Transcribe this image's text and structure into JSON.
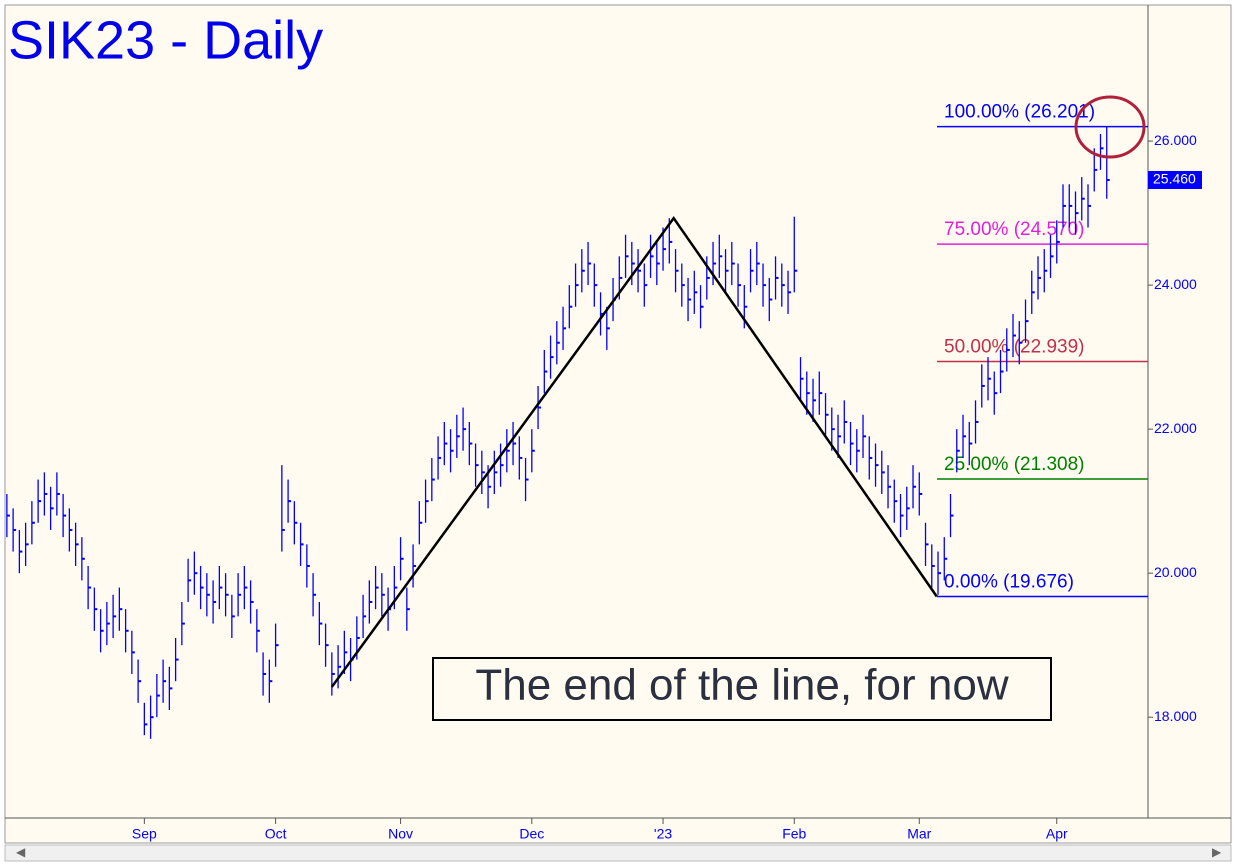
{
  "chart_data": {
    "type": "ohlc",
    "title": "SIK23 - Daily",
    "color": "#0000ff",
    "xlim": [
      -0.3,
      182.6
    ],
    "xticks": [
      {
        "value": 22,
        "label": "Sep"
      },
      {
        "value": 43,
        "label": "Oct"
      },
      {
        "value": 63,
        "label": "Nov"
      },
      {
        "value": 84,
        "label": "Dec"
      },
      {
        "value": 105,
        "label": "'23"
      },
      {
        "value": 126,
        "label": "Feb"
      },
      {
        "value": 146,
        "label": "Mar"
      },
      {
        "value": 168,
        "label": "Apr"
      }
    ],
    "ylim": [
      16.6,
      27.89
    ],
    "yticks": [
      {
        "value": 18,
        "label": "18.000"
      },
      {
        "value": 20,
        "label": "20.000"
      },
      {
        "value": 22,
        "label": "22.000"
      },
      {
        "value": 24,
        "label": "24.000"
      },
      {
        "value": 26,
        "label": "26.000"
      }
    ],
    "high": [
      21.1,
      20.9,
      20.6,
      20.7,
      21.0,
      21.3,
      21.4,
      21.2,
      21.4,
      21.1,
      20.9,
      20.7,
      20.5,
      20.1,
      19.8,
      19.5,
      19.6,
      19.7,
      19.8,
      19.5,
      19.2,
      18.8,
      18.2,
      18.3,
      18.6,
      18.8,
      18.7,
      19.1,
      19.6,
      20.2,
      20.3,
      20.1,
      20.0,
      19.9,
      20.1,
      20.0,
      19.7,
      20.0,
      20.1,
      19.9,
      19.5,
      18.9,
      18.8,
      19.3,
      21.5,
      21.3,
      21.0,
      20.7,
      20.4,
      20.0,
      19.6,
      19.3,
      18.9,
      19.0,
      19.2,
      19.1,
      19.4,
      19.7,
      19.9,
      20.1,
      20.0,
      19.8,
      20.1,
      20.5,
      19.8,
      20.4,
      21.0,
      21.3,
      21.6,
      21.9,
      22.1,
      22.0,
      22.2,
      22.3,
      22.1,
      21.8,
      21.7,
      21.5,
      21.7,
      21.8,
      22.0,
      22.1,
      21.9,
      21.6,
      22.0,
      22.6,
      23.1,
      23.3,
      23.5,
      23.7,
      24.0,
      24.3,
      24.5,
      24.6,
      24.3,
      23.9,
      23.7,
      24.1,
      24.4,
      24.7,
      24.6,
      24.5,
      24.3,
      24.7,
      24.6,
      24.8,
      24.93,
      24.5,
      24.3,
      24.1,
      24.2,
      24.0,
      24.4,
      24.6,
      24.7,
      24.5,
      24.6,
      24.3,
      24.0,
      24.5,
      24.6,
      24.3,
      24.1,
      24.4,
      24.3,
      24.2,
      24.95,
      23.0,
      22.8,
      22.7,
      22.8,
      22.5,
      22.3,
      22.2,
      22.4,
      22.1,
      22.0,
      22.2,
      21.9,
      21.8,
      21.7,
      21.5,
      21.3,
      21.1,
      21.2,
      21.5,
      21.4,
      20.7,
      20.4,
      20.3,
      20.5,
      21.1,
      22.0,
      22.2,
      22.1,
      22.4,
      22.9,
      23.0,
      22.8,
      23.1,
      23.4,
      23.6,
      23.5,
      23.8,
      24.2,
      24.4,
      24.5,
      24.7,
      24.9,
      25.4,
      25.4,
      25.3,
      25.5,
      25.4,
      25.9,
      26.1,
      26.2
    ],
    "low": [
      20.5,
      20.3,
      20.0,
      20.1,
      20.4,
      20.7,
      20.8,
      20.6,
      20.8,
      20.5,
      20.3,
      20.1,
      19.9,
      19.5,
      19.2,
      18.9,
      19.0,
      19.1,
      19.2,
      18.9,
      18.6,
      18.2,
      17.75,
      17.7,
      18.0,
      18.2,
      18.1,
      18.5,
      19.0,
      19.6,
      19.7,
      19.5,
      19.4,
      19.3,
      19.5,
      19.4,
      19.1,
      19.4,
      19.5,
      19.3,
      18.9,
      18.3,
      18.2,
      18.7,
      20.3,
      20.7,
      20.4,
      20.1,
      19.8,
      19.4,
      19.0,
      18.7,
      18.3,
      18.4,
      18.6,
      18.5,
      18.8,
      19.1,
      19.3,
      19.5,
      19.4,
      19.2,
      19.5,
      19.9,
      19.2,
      19.8,
      20.4,
      20.7,
      21.0,
      21.3,
      21.5,
      21.4,
      21.6,
      21.7,
      21.5,
      21.2,
      21.1,
      20.9,
      21.1,
      21.2,
      21.4,
      21.5,
      21.3,
      21.0,
      21.4,
      22.0,
      22.5,
      22.7,
      22.9,
      23.1,
      23.4,
      23.7,
      23.9,
      24.0,
      23.7,
      23.3,
      23.1,
      23.5,
      23.8,
      24.1,
      24.0,
      23.9,
      23.7,
      24.1,
      24.0,
      24.2,
      24.3,
      23.9,
      23.7,
      23.5,
      23.6,
      23.4,
      23.8,
      24.0,
      24.1,
      23.9,
      24.0,
      23.7,
      23.4,
      23.9,
      24.0,
      23.7,
      23.5,
      23.8,
      23.7,
      23.6,
      23.9,
      22.4,
      22.2,
      22.1,
      22.2,
      21.9,
      21.7,
      21.6,
      21.8,
      21.5,
      21.4,
      21.6,
      21.3,
      21.2,
      21.1,
      20.9,
      20.7,
      20.5,
      20.6,
      20.9,
      20.8,
      20.1,
      19.8,
      19.7,
      19.9,
      20.5,
      21.4,
      21.6,
      21.5,
      21.8,
      22.3,
      22.4,
      22.2,
      22.5,
      22.8,
      23.0,
      22.9,
      23.2,
      23.6,
      23.8,
      23.9,
      24.1,
      24.3,
      24.8,
      24.8,
      24.7,
      24.9,
      24.8,
      25.3,
      25.6,
      25.2
    ],
    "close": [
      20.8,
      20.6,
      20.3,
      20.4,
      20.7,
      21.0,
      21.1,
      20.9,
      21.1,
      20.8,
      20.6,
      20.4,
      20.2,
      19.8,
      19.5,
      19.2,
      19.3,
      19.4,
      19.5,
      19.2,
      18.9,
      18.5,
      17.9,
      18.0,
      18.3,
      18.5,
      18.4,
      18.8,
      19.3,
      19.9,
      20.0,
      19.8,
      19.7,
      19.6,
      19.8,
      19.7,
      19.4,
      19.7,
      19.8,
      19.6,
      19.2,
      18.6,
      18.5,
      19.0,
      20.6,
      21.0,
      20.7,
      20.4,
      20.1,
      19.7,
      19.3,
      19.0,
      18.6,
      18.7,
      18.9,
      18.8,
      19.1,
      19.4,
      19.6,
      19.8,
      19.7,
      19.5,
      19.8,
      20.2,
      19.5,
      20.1,
      20.7,
      21.0,
      21.3,
      21.6,
      21.8,
      21.7,
      21.9,
      22.0,
      21.8,
      21.5,
      21.4,
      21.2,
      21.4,
      21.5,
      21.7,
      21.8,
      21.6,
      21.3,
      21.7,
      22.3,
      22.8,
      23.0,
      23.2,
      23.4,
      23.7,
      24.0,
      24.2,
      24.3,
      24.0,
      23.6,
      23.4,
      23.8,
      24.1,
      24.4,
      24.3,
      24.2,
      24.0,
      24.4,
      24.3,
      24.5,
      24.6,
      24.2,
      24.0,
      23.8,
      23.9,
      23.7,
      24.1,
      24.3,
      24.4,
      24.2,
      24.3,
      24.0,
      23.7,
      24.2,
      24.3,
      24.0,
      23.8,
      24.1,
      24.0,
      23.9,
      24.2,
      22.7,
      22.5,
      22.4,
      22.5,
      22.2,
      22.0,
      21.9,
      22.1,
      21.8,
      21.7,
      21.9,
      21.6,
      21.5,
      21.4,
      21.2,
      21.0,
      20.8,
      20.9,
      21.2,
      21.1,
      20.4,
      20.1,
      20.0,
      20.2,
      20.8,
      21.7,
      21.9,
      21.8,
      22.1,
      22.6,
      22.7,
      22.5,
      22.8,
      23.1,
      23.3,
      23.2,
      23.5,
      23.9,
      24.1,
      24.2,
      24.4,
      24.6,
      25.1,
      25.1,
      25.0,
      25.2,
      25.1,
      25.6,
      25.9,
      25.46
    ],
    "trend_line": {
      "x": [
        52,
        106.7,
        148.8
      ],
      "y": [
        18.42,
        24.93,
        19.676
      ]
    },
    "fib_levels": [
      {
        "label": "100.00% (26.201)",
        "value": 26.201,
        "color": "#0000ff"
      },
      {
        "label": "75.00% (24.570)",
        "value": 24.57,
        "color": "#e020e0"
      },
      {
        "label": "50.00% (22.939)",
        "value": 22.939,
        "color": "#c0304a"
      },
      {
        "label": "25.00% (21.308)",
        "value": 21.308,
        "color": "#008000"
      },
      {
        "label": "0.00% (19.676)",
        "value": 19.676,
        "color": "#0000ff"
      }
    ],
    "last_price": {
      "value": 25.46,
      "label": "25.460"
    },
    "annotation": "The end of the line, for now"
  }
}
